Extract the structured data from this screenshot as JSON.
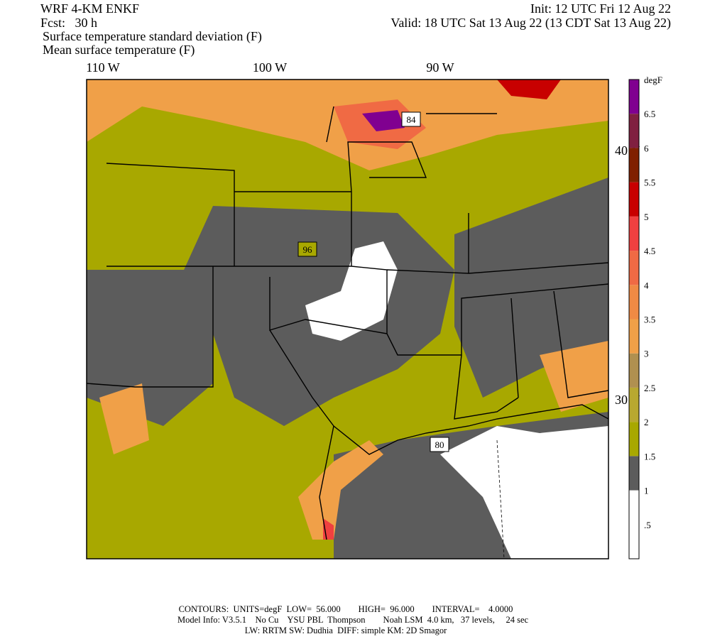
{
  "header": {
    "model": "WRF 4-KM ENKF",
    "forecast": "Fcst:   30 h",
    "init": "Init: 12 UTC Fri 12 Aug 22",
    "valid": "Valid: 18 UTC Sat 13 Aug 22 (13 CDT Sat 13 Aug 22)",
    "field_shaded": "Surface temperature standard deviation (F)",
    "field_contour": "Mean surface temperature (F)"
  },
  "map": {
    "longitude_labels": [
      "110 W",
      "100 W",
      "90 W"
    ],
    "latitude_labels": [
      "40 N",
      "30 N"
    ],
    "contour_labels": [
      "84",
      "96",
      "80"
    ]
  },
  "colorbar": {
    "title": "degF",
    "labels": [
      ".5",
      "1",
      "1.5",
      "2",
      "2.5",
      "3",
      "3.5",
      "4",
      "4.5",
      "5",
      "5.5",
      "6",
      "6.5"
    ],
    "colors": [
      "#ffffff",
      "#ffffff",
      "#5c5c5c",
      "#a8a800",
      "#b8a830",
      "#b09050",
      "#f0a048",
      "#f08a44",
      "#f06a44",
      "#f04040",
      "#c80000",
      "#802000",
      "#802040",
      "#800090"
    ]
  },
  "footer": {
    "line1": "CONTOURS:  UNITS=degF  LOW=  56.000        HIGH=  96.000        INTERVAL=    4.0000",
    "line2": "Model Info: V3.5.1    No Cu    YSU PBL  Thompson        Noah LSM  4.0 km,   37 levels,     24 sec",
    "line3": "LW: RRTM SW: Dudhia  DIFF: simple KM: 2D Smagor"
  }
}
